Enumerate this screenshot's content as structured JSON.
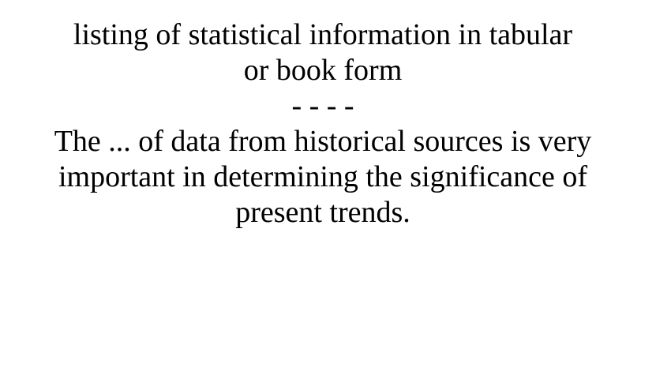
{
  "card": {
    "definition": "listing of statistical information in tabular or book form",
    "separator": "- - - -",
    "sentence": "The ... of data from historical sources is very important in determining the significance of present trends."
  }
}
